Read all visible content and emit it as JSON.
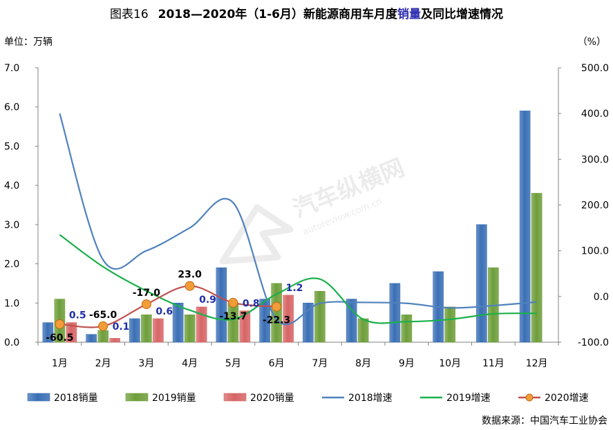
{
  "title": {
    "prefix": "图表16",
    "main_a": "2018—2020年（1-6月）新能源商用车月度",
    "main_highlight": "销量",
    "main_b": "及同比增速情况"
  },
  "unit_left": "单位：万辆",
  "unit_right": "（%）",
  "source": "数据来源：中国汽车工业协会",
  "watermark": {
    "brand": "汽车纵横网",
    "url": "autoreview.com.cn"
  },
  "colors": {
    "s2018": "#3a6fb5",
    "s2019": "#6e9e3a",
    "s2020": "#d76566",
    "g2018": "#4f81bd",
    "g2019": "#1bb04a",
    "g2020": "#c0504d",
    "g2020_marker": "#f39c3a"
  },
  "chart_data": {
    "type": "bar",
    "categories": [
      "1月",
      "2月",
      "3月",
      "4月",
      "5月",
      "6月",
      "7月",
      "8月",
      "9月",
      "10月",
      "11月",
      "12月"
    ],
    "left_axis": {
      "ylim": [
        0,
        7
      ],
      "ticks": [
        "0.0",
        "1.0",
        "2.0",
        "3.0",
        "4.0",
        "5.0",
        "6.0",
        "7.0"
      ]
    },
    "right_axis": {
      "ylim": [
        -100,
        500
      ],
      "ticks": [
        "-100.0",
        "0.0",
        "100.0",
        "200.0",
        "300.0",
        "400.0",
        "500.0"
      ]
    },
    "bar_series": [
      {
        "name": "2018销量",
        "values": [
          0.5,
          0.2,
          0.6,
          1.0,
          1.9,
          1.1,
          1.0,
          1.1,
          1.5,
          1.8,
          3.0,
          5.9
        ]
      },
      {
        "name": "2019销量",
        "values": [
          1.1,
          0.3,
          0.7,
          0.7,
          1.0,
          1.5,
          1.3,
          0.6,
          0.7,
          0.9,
          1.9,
          3.8
        ]
      },
      {
        "name": "2020销量",
        "values": [
          0.5,
          0.1,
          0.6,
          0.9,
          0.8,
          1.2
        ]
      }
    ],
    "line_series": [
      {
        "name": "2018增速",
        "values": [
          400,
          80,
          100,
          150,
          205,
          -50,
          -15,
          -13,
          -15,
          -25,
          -20,
          -12
        ]
      },
      {
        "name": "2019增速",
        "values": [
          135,
          65,
          12,
          -30,
          -50,
          5,
          38,
          -50,
          -55,
          -50,
          -38,
          -37
        ]
      },
      {
        "name": "2020增速",
        "values": [
          -60.5,
          -65.0,
          -17.0,
          23.0,
          -13.7,
          -22.3
        ]
      }
    ],
    "labels_2020_sales": [
      "0.5",
      "0.1",
      "0.6",
      "0.9",
      "0.8",
      "1.2"
    ],
    "labels_2020_growth": [
      "-60.5",
      "-65.0",
      "-17.0",
      "23.0",
      "-13.7",
      "-22.3"
    ],
    "legend": [
      "2018销量",
      "2019销量",
      "2020销量",
      "2018增速",
      "2019增速",
      "2020增速"
    ],
    "legend_position": "bottom",
    "grid": false
  }
}
